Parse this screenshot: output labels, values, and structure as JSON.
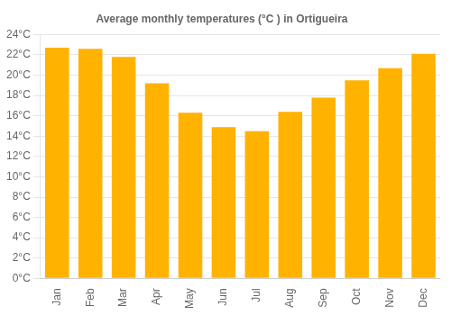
{
  "chart_data": {
    "type": "bar",
    "title": "Average monthly temperatures (°C ) in Ortigueira",
    "categories": [
      "Jan",
      "Feb",
      "Mar",
      "Apr",
      "May",
      "Jun",
      "Jul",
      "Aug",
      "Sep",
      "Oct",
      "Nov",
      "Dec"
    ],
    "values": [
      22.7,
      22.6,
      21.8,
      19.2,
      16.3,
      14.9,
      14.5,
      16.4,
      17.8,
      19.5,
      20.7,
      22.1
    ],
    "color": "#FFB300",
    "ylim": [
      0,
      24
    ],
    "yticks": [
      {
        "value": 0,
        "label": "0°C"
      },
      {
        "value": 2,
        "label": "2°C"
      },
      {
        "value": 4,
        "label": "4°C"
      },
      {
        "value": 6,
        "label": "6°C"
      },
      {
        "value": 8,
        "label": "8°C"
      },
      {
        "value": 10,
        "label": "10°C"
      },
      {
        "value": 12,
        "label": "12°C"
      },
      {
        "value": 14,
        "label": "14°C"
      },
      {
        "value": 16,
        "label": "16°C"
      },
      {
        "value": 18,
        "label": "18°C"
      },
      {
        "value": 20,
        "label": "20°C"
      },
      {
        "value": 22,
        "label": "22°C"
      },
      {
        "value": 24,
        "label": "24°C"
      }
    ],
    "grid": true
  }
}
